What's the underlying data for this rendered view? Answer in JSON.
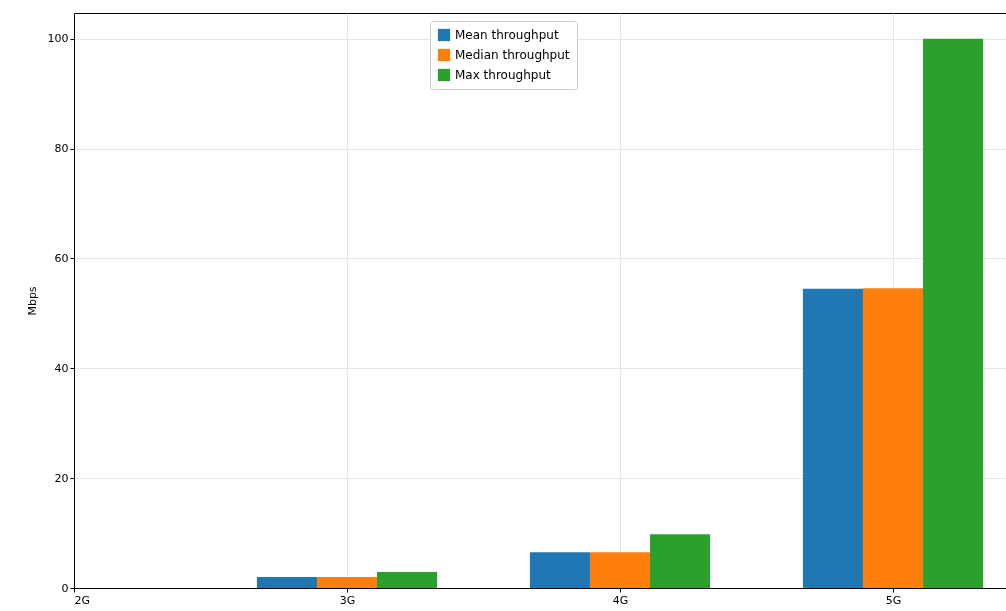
{
  "chart_data": {
    "type": "bar",
    "ylabel": "Mbps",
    "categories": [
      "2G",
      "3G",
      "4G",
      "5G"
    ],
    "series": [
      {
        "name": "Mean throughput",
        "color": "#1f77b4",
        "values": [
          null,
          2.0,
          6.5,
          54.5
        ]
      },
      {
        "name": "Median throughput",
        "color": "#ff7f0e",
        "values": [
          null,
          2.0,
          6.5,
          54.6
        ]
      },
      {
        "name": "Max throughput",
        "color": "#2ca02c",
        "values": [
          null,
          2.9,
          9.8,
          100
        ]
      }
    ],
    "ylim": [
      0,
      104.7
    ],
    "yticks": [
      0,
      20,
      40,
      60,
      80,
      100
    ],
    "grid": true,
    "legend": "top"
  }
}
